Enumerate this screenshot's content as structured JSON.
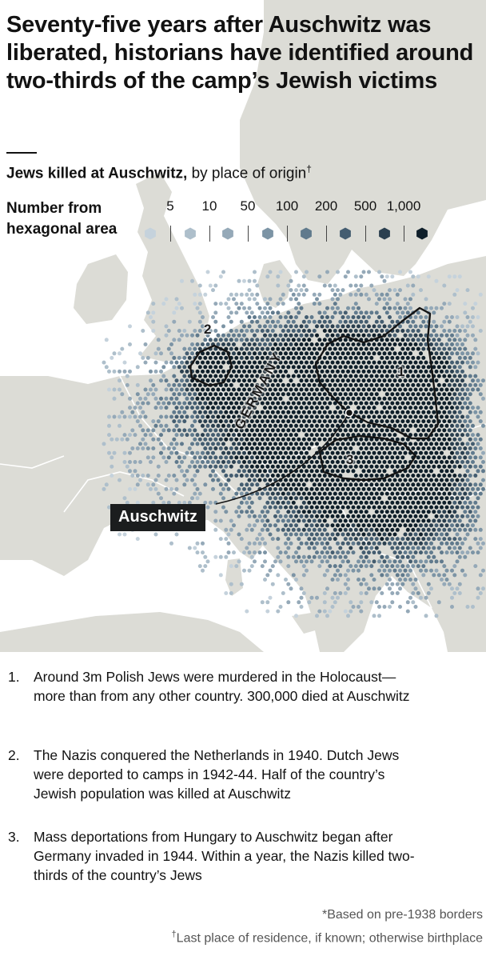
{
  "headline": "Seventy-five years after Auschwitz was liberated, historians have identified around two-thirds of the camp’s Jewish victims",
  "subtitle": {
    "bold": "Jews killed at Auschwitz,",
    "rest": " by place of origin",
    "mark": "†"
  },
  "legend": {
    "title": "Number from hexagonal area",
    "labels": [
      "5",
      "10",
      "50",
      "100",
      "200",
      "500",
      "1,000"
    ],
    "colors": [
      "#c5d2dc",
      "#aebfcb",
      "#95a9b8",
      "#7c94a5",
      "#607a8d",
      "#445d70",
      "#2a3f4f",
      "#0f1f2a"
    ]
  },
  "map": {
    "labels": {
      "poland": "1",
      "netherlands": "2",
      "hungary": "3",
      "germany": "GERMANY",
      "auschwitz": "Auschwitz"
    },
    "land_color": "#dcdcd6",
    "sea_color": "#ffffff",
    "border_color": "#ffffff"
  },
  "notes": [
    {
      "num": "1.",
      "text": "Around 3m Polish Jews were murdered in the Holocaust—more than from any other country. 300,000 died at Auschwitz"
    },
    {
      "num": "2.",
      "text": "The Nazis conquered the Netherlands in 1940. Dutch Jews were deported to camps in 1942-44. Half of the country’s Jewish population was killed at Auschwitz"
    },
    {
      "num": "3.",
      "text": "Mass deportations from Hungary to Auschwitz began after Germany invaded in 1944. Within a year, the Nazis killed two-thirds of the country’s Jews"
    }
  ],
  "footnotes": [
    {
      "mark": "*",
      "text": "Based on pre-1938 borders"
    },
    {
      "mark": "†",
      "text": "Last place of residence, if known; otherwise birthplace"
    }
  ]
}
